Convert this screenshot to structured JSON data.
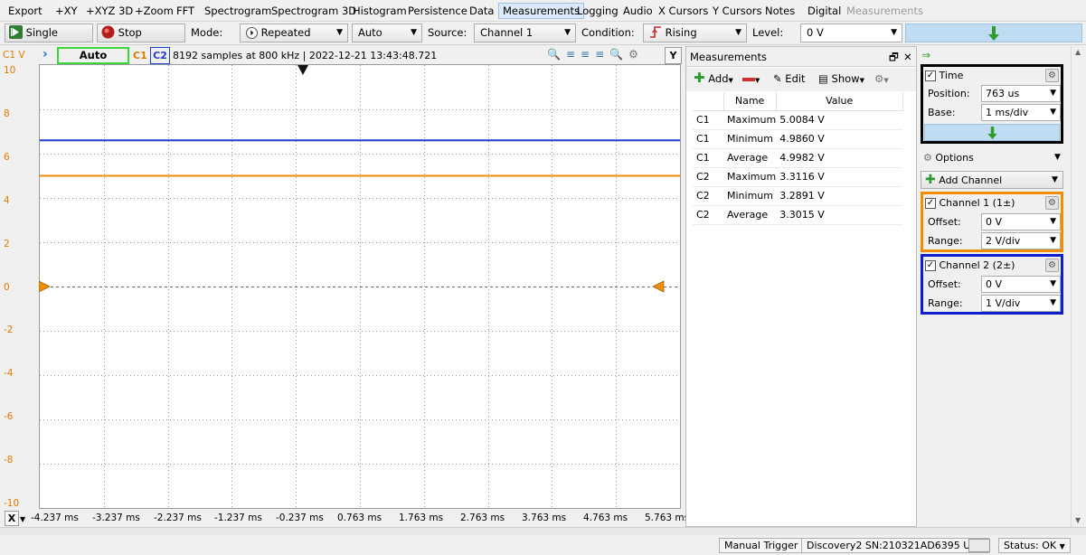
{
  "menu": {
    "items": [
      "Export",
      "+XY",
      "+XYZ 3D",
      "+Zoom",
      "FFT",
      "Spectrogram",
      "Spectrogram 3D",
      "Histogram",
      "Persistence",
      "Data",
      "Measurements",
      "Logging",
      "Audio",
      "X Cursors",
      "Y Cursors",
      "Notes",
      "Digital",
      "Measurements"
    ],
    "active_index": 10,
    "disabled_index": 17
  },
  "toolbar": {
    "single_label": "Single",
    "stop_label": "Stop",
    "mode_label": "Mode:",
    "mode_value": "Repeated",
    "auto_value": "Auto",
    "source_label": "Source:",
    "source_value": "Channel 1",
    "condition_label": "Condition:",
    "condition_value": "Rising",
    "level_label": "Level:",
    "level_value": "0 V"
  },
  "plot": {
    "unit_label": "C1 V",
    "trigger_status": "Auto",
    "ch1_tag": "C1",
    "ch2_tag": "C2",
    "info": "8192 samples at 800 kHz | 2022-12-21 13:43:48.721",
    "y_ticks": [
      "10",
      "8",
      "6",
      "4",
      "2",
      "0",
      "-2",
      "-4",
      "-6",
      "-8",
      "-10"
    ],
    "x_ticks": [
      "-4.237 ms",
      "-3.237 ms",
      "-2.237 ms",
      "-1.237 ms",
      "-0.237 ms",
      "0.763 ms",
      "1.763 ms",
      "2.763 ms",
      "3.763 ms",
      "4.763 ms",
      "5.763 ms"
    ],
    "x_axis_button": "X",
    "y_axis_button": "Y",
    "ch1_color": "#f28c00",
    "ch2_color": "#1f3fd6",
    "ch1_level_v": 5.0,
    "ch2_level_v": 3.3
  },
  "measurements": {
    "title": "Measurements",
    "add_label": "Add",
    "edit_label": "Edit",
    "show_label": "Show",
    "columns": [
      "",
      "Name",
      "Value"
    ],
    "rows": [
      {
        "ch": "C1",
        "name": "Maximum",
        "value": "5.0084 V"
      },
      {
        "ch": "C1",
        "name": "Minimum",
        "value": "4.9860 V"
      },
      {
        "ch": "C1",
        "name": "Average",
        "value": "4.9982 V"
      },
      {
        "ch": "C2",
        "name": "Maximum",
        "value": "3.3116 V"
      },
      {
        "ch": "C2",
        "name": "Minimum",
        "value": "3.2891 V"
      },
      {
        "ch": "C2",
        "name": "Average",
        "value": "3.3015 V"
      }
    ]
  },
  "right": {
    "time": {
      "label": "Time",
      "position_label": "Position:",
      "position_value": "763 us",
      "base_label": "Base:",
      "base_value": "1 ms/div"
    },
    "options_label": "Options",
    "add_channel_label": "Add Channel",
    "ch1": {
      "label": "Channel 1 (1±)",
      "offset_label": "Offset:",
      "offset_value": "0 V",
      "range_label": "Range:",
      "range_value": "2 V/div"
    },
    "ch2": {
      "label": "Channel 2 (2±)",
      "offset_label": "Offset:",
      "offset_value": "0 V",
      "range_label": "Range:",
      "range_value": "1 V/div"
    }
  },
  "status": {
    "manual_trigger": "Manual Trigger",
    "device": "Discovery2 SN:210321AD6395 USB",
    "status_label": "Status: OK"
  }
}
